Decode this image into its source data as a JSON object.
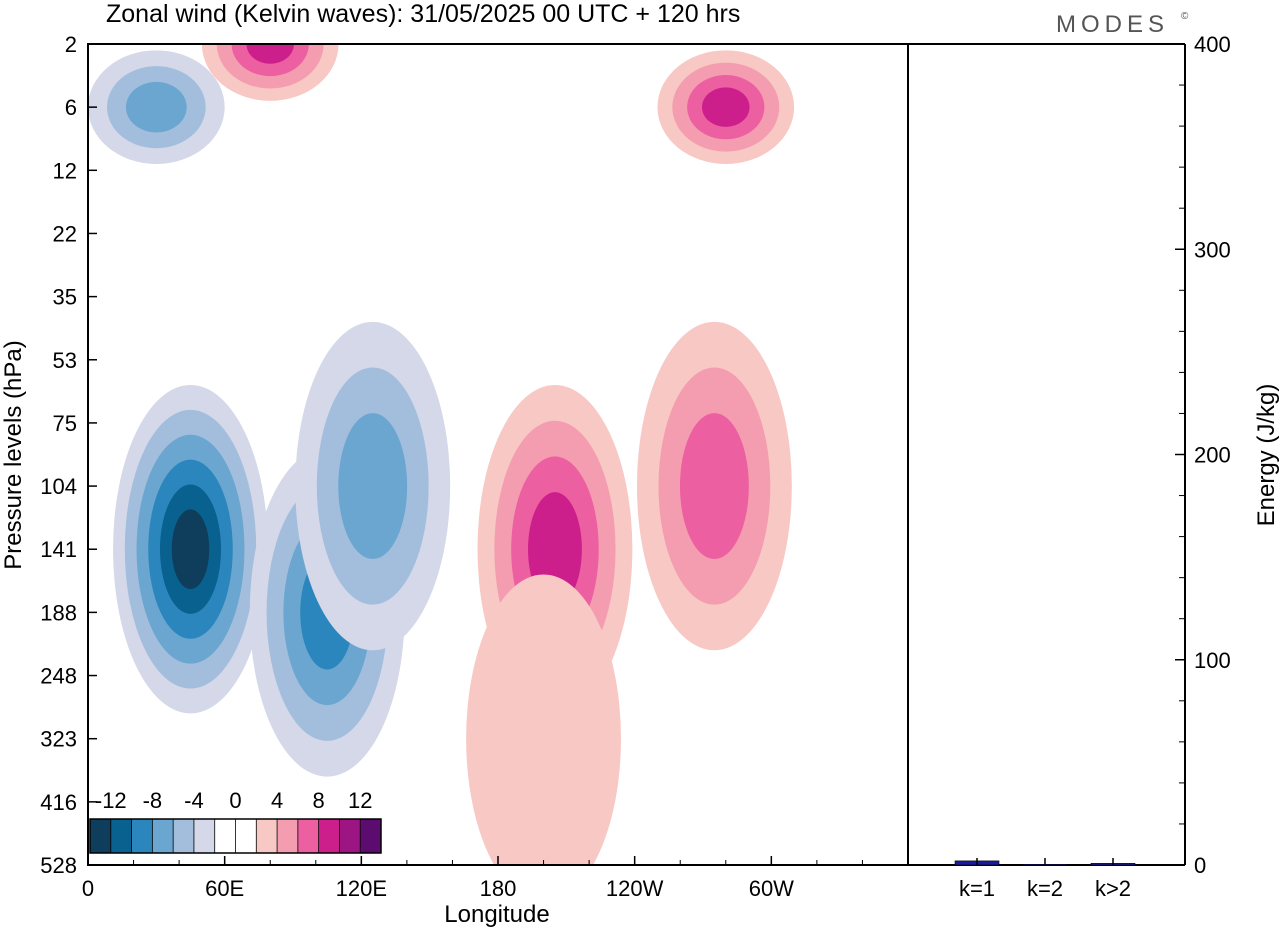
{
  "title": "Zonal wind (Kelvin waves):  31/05/2025  00 UTC  + 120 hrs",
  "logo": "MODES",
  "logo_mark": "©",
  "chart_data": [
    {
      "type": "heatmap",
      "title": "Zonal wind (Kelvin waves):  31/05/2025  00 UTC  + 120 hrs",
      "xlabel": "Longitude",
      "ylabel": "Pressure levels (hPa)",
      "x_ticks": [
        "0",
        "60E",
        "120E",
        "180",
        "120W",
        "60W"
      ],
      "x_tick_degrees": [
        0,
        60,
        120,
        180,
        240,
        300
      ],
      "xlim": [
        0,
        360
      ],
      "y_ticks": [
        "2",
        "6",
        "12",
        "22",
        "35",
        "53",
        "75",
        "104",
        "141",
        "188",
        "248",
        "323",
        "416",
        "528"
      ],
      "y_axis": "pressure levels, equally spaced, top to bottom",
      "colorbar": {
        "tick_labels": [
          "-12",
          "-8",
          "-4",
          "0",
          "4",
          "8",
          "12"
        ],
        "levels": [
          -14,
          -12,
          -10,
          -8,
          -6,
          -4,
          -2,
          0,
          2,
          4,
          6,
          8,
          10,
          12,
          14
        ],
        "colors": [
          "#0f3d5c",
          "#08618f",
          "#2a86bd",
          "#6aa6cf",
          "#a3bedd",
          "#d4d8e8",
          "#ffffff",
          "#ffffff",
          "#f8c9c4",
          "#f59db0",
          "#ec5fa0",
          "#cd1f8b",
          "#9d1583",
          "#5c0b6e"
        ]
      },
      "regions": [
        {
          "sign": "negative",
          "lon": 45,
          "level": "141",
          "peak": -12,
          "note": "strong easterly core, 104–248 hPa"
        },
        {
          "sign": "negative",
          "lon": 105,
          "level": "188",
          "peak": -8
        },
        {
          "sign": "negative",
          "lon": 125,
          "level": "104",
          "peak": -6
        },
        {
          "sign": "positive",
          "lon": 205,
          "level": "141",
          "peak": 8,
          "note": "westerly core, 104–248 hPa"
        },
        {
          "sign": "positive",
          "lon": 275,
          "level": "104",
          "peak": 6
        },
        {
          "sign": "positive",
          "lon": 200,
          "level": "323",
          "peak": 2
        },
        {
          "sign": "positive",
          "lon": 280,
          "level": "6",
          "peak": 8
        },
        {
          "sign": "negative",
          "lon": 30,
          "level": "6",
          "peak": -6
        },
        {
          "sign": "positive",
          "lon": 80,
          "level": "2",
          "peak": 8
        }
      ]
    },
    {
      "type": "bar",
      "ylabel": "Energy (J/kg)",
      "categories": [
        "k=1",
        "k=2",
        "k>2"
      ],
      "values": [
        2,
        0.3,
        0.8
      ],
      "ylim": [
        0,
        400
      ],
      "y_ticks": [
        "0",
        "100",
        "200",
        "300",
        "400"
      ],
      "bar_color": "#1a1aa0"
    }
  ]
}
